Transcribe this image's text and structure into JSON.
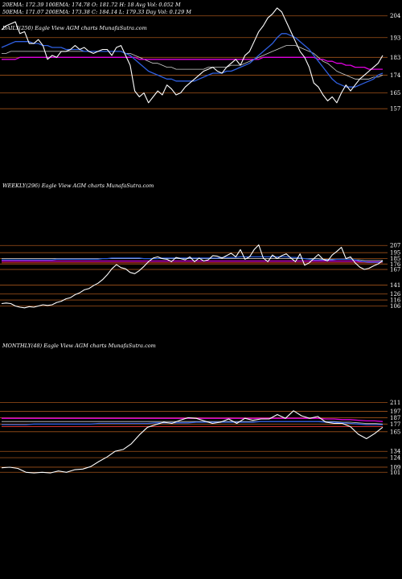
{
  "header": {
    "line1": "20EMA: 172.39     100EMA: 174.78     O: 181.72     H: 18      Avg Vol: 0.052  M",
    "line2": "50EMA: 171.07     200EMA: 173.38     C: 184.14     L: 179.33     Day Vol: 0.129  M"
  },
  "colors": {
    "price": "#ffffff",
    "ema_blue": "#2f5fe0",
    "ema_magenta": "#e000e0",
    "ema_red": "#d03030",
    "ema_gray": "#cfcfcf",
    "level_line": "#a0521a",
    "background": "#000000"
  },
  "chart_data": [
    {
      "type": "line",
      "title": "DAILY(250) Eagle  View  AGM charts MunafaSutra.com",
      "y_ticks": [
        204,
        193,
        183,
        174,
        165,
        157
      ],
      "ylim": [
        153,
        210
      ],
      "series": [
        {
          "role": "price",
          "values": [
            197,
            199,
            200,
            201,
            195,
            196,
            190,
            190,
            192,
            189,
            182,
            184,
            183,
            186,
            186,
            187,
            189,
            187,
            188,
            186,
            185,
            186,
            187,
            187,
            184,
            188,
            189,
            184,
            179,
            166,
            163,
            165,
            160,
            163,
            166,
            164,
            169,
            167,
            164,
            165,
            168,
            170,
            172,
            174,
            176,
            177,
            178,
            176,
            175,
            178,
            180,
            182,
            179,
            184,
            186,
            191,
            196,
            199,
            203,
            205,
            208,
            206,
            201,
            196,
            191,
            186,
            183,
            178,
            170,
            168,
            164,
            161,
            163,
            160,
            165,
            169,
            166,
            169,
            172,
            174,
            176,
            178,
            180,
            184
          ]
        },
        {
          "role": "ema_blue",
          "values": [
            188,
            189,
            190,
            191,
            191,
            191,
            191,
            190,
            190,
            189,
            189,
            188,
            188,
            188,
            187,
            187,
            187,
            187,
            186,
            186,
            186,
            186,
            186,
            186,
            186,
            186,
            186,
            185,
            184,
            182,
            180,
            178,
            176,
            175,
            174,
            173,
            172,
            172,
            171,
            171,
            171,
            171,
            171,
            172,
            173,
            174,
            175,
            175,
            175,
            176,
            176,
            177,
            178,
            179,
            180,
            182,
            184,
            186,
            188,
            190,
            193,
            195,
            195,
            194,
            193,
            191,
            189,
            187,
            184,
            181,
            178,
            175,
            172,
            170,
            169,
            168,
            168,
            168,
            169,
            170,
            171,
            172,
            174,
            175
          ]
        },
        {
          "role": "ema_magenta",
          "values": [
            182,
            182,
            182,
            182,
            183,
            183,
            183,
            183,
            183,
            183,
            183,
            183,
            183,
            183,
            183,
            183,
            183,
            183,
            183,
            183,
            183,
            183,
            183,
            183,
            183,
            183,
            183,
            183,
            183,
            183,
            182,
            182,
            182,
            182,
            182,
            182,
            182,
            182,
            182,
            182,
            182,
            182,
            182,
            182,
            182,
            182,
            182,
            182,
            182,
            182,
            182,
            182,
            182,
            182,
            182,
            182,
            182,
            183,
            183,
            183,
            183,
            183,
            183,
            183,
            183,
            183,
            183,
            183,
            183,
            182,
            182,
            181,
            181,
            180,
            180,
            179,
            179,
            178,
            178,
            178,
            177,
            177,
            177,
            177
          ]
        },
        {
          "role": "ema_gray",
          "values": [
            185,
            185,
            186,
            186,
            186,
            186,
            186,
            186,
            186,
            186,
            186,
            186,
            186,
            186,
            186,
            186,
            186,
            186,
            186,
            186,
            186,
            186,
            186,
            186,
            186,
            186,
            186,
            185,
            185,
            184,
            183,
            182,
            181,
            180,
            180,
            179,
            178,
            178,
            177,
            177,
            177,
            177,
            177,
            177,
            177,
            178,
            178,
            178,
            178,
            178,
            179,
            179,
            179,
            180,
            181,
            182,
            183,
            184,
            185,
            186,
            187,
            188,
            189,
            189,
            189,
            188,
            187,
            186,
            185,
            183,
            181,
            180,
            178,
            176,
            175,
            174,
            173,
            172,
            172,
            172,
            172,
            173,
            173,
            174
          ]
        }
      ]
    },
    {
      "type": "line",
      "title": "WEEKLY(296) Eagle  View  AGM charts MunafaSutra.com",
      "y_ticks": [
        207,
        195,
        185,
        176,
        167,
        141,
        126,
        116,
        106
      ],
      "ylim": [
        100,
        214
      ],
      "series": [
        {
          "role": "price",
          "values": [
            110,
            111,
            110,
            106,
            104,
            103,
            105,
            104,
            106,
            108,
            107,
            108,
            112,
            114,
            118,
            120,
            125,
            128,
            133,
            135,
            140,
            144,
            150,
            158,
            168,
            175,
            170,
            168,
            162,
            160,
            165,
            172,
            180,
            186,
            188,
            185,
            184,
            180,
            187,
            185,
            183,
            188,
            180,
            186,
            181,
            183,
            190,
            189,
            186,
            190,
            194,
            188,
            200,
            184,
            188,
            200,
            208,
            186,
            180,
            191,
            185,
            190,
            193,
            186,
            180,
            193,
            174,
            178,
            185,
            192,
            184,
            181,
            191,
            197,
            204,
            185,
            188,
            178,
            171,
            167,
            169,
            173,
            176,
            182
          ]
        },
        {
          "role": "ema_blue",
          "values": [
            183,
            183,
            183,
            183,
            183,
            183,
            183,
            183,
            183,
            183,
            183,
            183,
            184,
            184,
            184,
            184,
            184,
            184,
            184,
            184,
            184,
            184,
            185,
            185,
            186,
            186,
            186,
            186,
            186,
            186,
            186,
            185,
            185,
            185,
            185,
            186,
            186,
            186,
            186,
            186,
            186,
            186,
            186,
            186,
            186,
            186,
            186,
            186,
            187,
            187,
            187,
            187,
            188,
            188,
            188,
            188,
            188,
            188,
            188,
            188,
            188,
            188,
            188,
            187,
            187,
            186,
            185,
            184,
            183,
            183,
            183,
            183,
            183,
            184,
            184,
            184,
            184,
            183,
            181,
            180,
            179,
            179,
            179,
            180
          ]
        },
        {
          "role": "ema_magenta",
          "values": [
            181,
            181,
            181,
            181,
            181,
            181,
            181,
            181,
            181,
            181,
            181,
            181,
            181,
            181,
            181,
            181,
            181,
            181,
            181,
            181,
            181,
            181,
            181,
            181,
            181,
            181,
            181,
            181,
            181,
            181,
            181,
            181,
            181,
            181,
            181,
            181,
            181,
            181,
            181,
            181,
            181,
            181,
            181,
            181,
            181,
            181,
            181,
            181,
            181,
            181,
            181,
            181,
            181,
            181,
            181,
            181,
            181,
            181,
            181,
            181,
            181,
            181,
            181,
            181,
            181,
            181,
            181,
            181,
            181,
            181,
            181,
            181,
            181,
            181,
            181,
            181,
            181,
            181,
            180,
            180,
            180,
            180,
            180,
            180
          ]
        },
        {
          "role": "ema_red",
          "values": [
            178,
            178,
            178,
            178,
            178,
            178,
            178,
            178,
            178,
            178,
            178,
            178,
            178,
            178,
            178,
            178,
            178,
            178,
            178,
            178,
            178,
            178,
            178,
            178,
            178,
            178,
            178,
            178,
            178,
            178,
            178,
            178,
            178,
            178,
            178,
            178,
            178,
            178,
            178,
            178,
            178,
            178,
            178,
            178,
            178,
            178,
            178,
            178,
            178,
            178,
            178,
            178,
            178,
            178,
            178,
            178,
            178,
            178,
            178,
            178,
            178,
            178,
            178,
            178,
            178,
            178,
            178,
            178,
            178,
            178,
            178,
            178,
            178,
            178,
            178,
            178,
            178,
            178,
            178,
            178,
            178,
            178,
            178,
            178
          ]
        },
        {
          "role": "ema_gray",
          "values": [
            185,
            185,
            185,
            185,
            185,
            185,
            185,
            185,
            185,
            185,
            185,
            185,
            185,
            185,
            185,
            185,
            185,
            185,
            185,
            185,
            185,
            185,
            185,
            185,
            185,
            185,
            185,
            185,
            185,
            185,
            185,
            185,
            185,
            185,
            185,
            185,
            185,
            185,
            185,
            185,
            185,
            185,
            185,
            185,
            185,
            185,
            185,
            185,
            185,
            185,
            185,
            185,
            185,
            185,
            185,
            185,
            185,
            185,
            185,
            185,
            185,
            185,
            185,
            185,
            185,
            185,
            185,
            185,
            185,
            185,
            184,
            184,
            184,
            184,
            184,
            184,
            184,
            183,
            183,
            182,
            182,
            182,
            182,
            182
          ]
        }
      ]
    },
    {
      "type": "line",
      "title": "MONTHLY(48) Eagle  View  AGM charts MunafaSutra.com",
      "y_ticks": [
        211,
        197,
        187,
        177,
        165,
        134,
        124,
        109,
        101
      ],
      "ylim": [
        95,
        218
      ],
      "series": [
        {
          "role": "price",
          "values": [
            108,
            109,
            107,
            101,
            100,
            101,
            100,
            103,
            101,
            105,
            106,
            110,
            118,
            125,
            134,
            137,
            146,
            160,
            172,
            176,
            180,
            178,
            183,
            187,
            186,
            182,
            178,
            180,
            185,
            178,
            186,
            183,
            185,
            185,
            192,
            186,
            198,
            190,
            186,
            189,
            180,
            178,
            178,
            173,
            161,
            154,
            162,
            172
          ]
        },
        {
          "role": "ema_blue",
          "values": [
            176,
            176,
            176,
            176,
            177,
            177,
            177,
            177,
            177,
            177,
            177,
            177,
            178,
            178,
            178,
            178,
            178,
            178,
            178,
            179,
            179,
            179,
            179,
            179,
            180,
            180,
            180,
            180,
            180,
            180,
            180,
            180,
            181,
            181,
            181,
            181,
            181,
            181,
            181,
            181,
            180,
            180,
            179,
            178,
            177,
            176,
            176,
            176
          ]
        },
        {
          "role": "ema_magenta",
          "values": [
            186,
            186,
            186,
            186,
            186,
            186,
            186,
            186,
            186,
            186,
            186,
            186,
            186,
            186,
            186,
            186,
            186,
            186,
            186,
            186,
            186,
            186,
            186,
            186,
            186,
            186,
            186,
            186,
            186,
            186,
            186,
            186,
            186,
            186,
            186,
            186,
            186,
            186,
            186,
            186,
            185,
            185,
            184,
            184,
            183,
            182,
            182,
            181
          ]
        },
        {
          "role": "ema_red",
          "values": [
            173,
            173,
            173,
            173,
            173,
            173,
            173,
            173,
            173,
            173,
            173,
            173,
            173,
            173,
            173,
            173,
            173,
            173,
            173,
            173,
            173,
            173,
            173,
            173,
            173,
            173,
            173,
            173,
            173,
            173,
            173,
            173,
            173,
            173,
            173,
            173,
            173,
            173,
            173,
            173,
            173,
            173,
            173,
            173,
            173,
            173,
            173,
            173
          ]
        },
        {
          "role": "ema_gray",
          "values": [
            181,
            181,
            181,
            181,
            181,
            181,
            181,
            181,
            181,
            181,
            181,
            181,
            181,
            181,
            181,
            181,
            181,
            181,
            181,
            181,
            181,
            181,
            181,
            181,
            181,
            181,
            181,
            181,
            181,
            181,
            181,
            181,
            181,
            181,
            181,
            181,
            181,
            181,
            181,
            181,
            181,
            181,
            180,
            180,
            179,
            178,
            178,
            177
          ]
        }
      ]
    }
  ]
}
